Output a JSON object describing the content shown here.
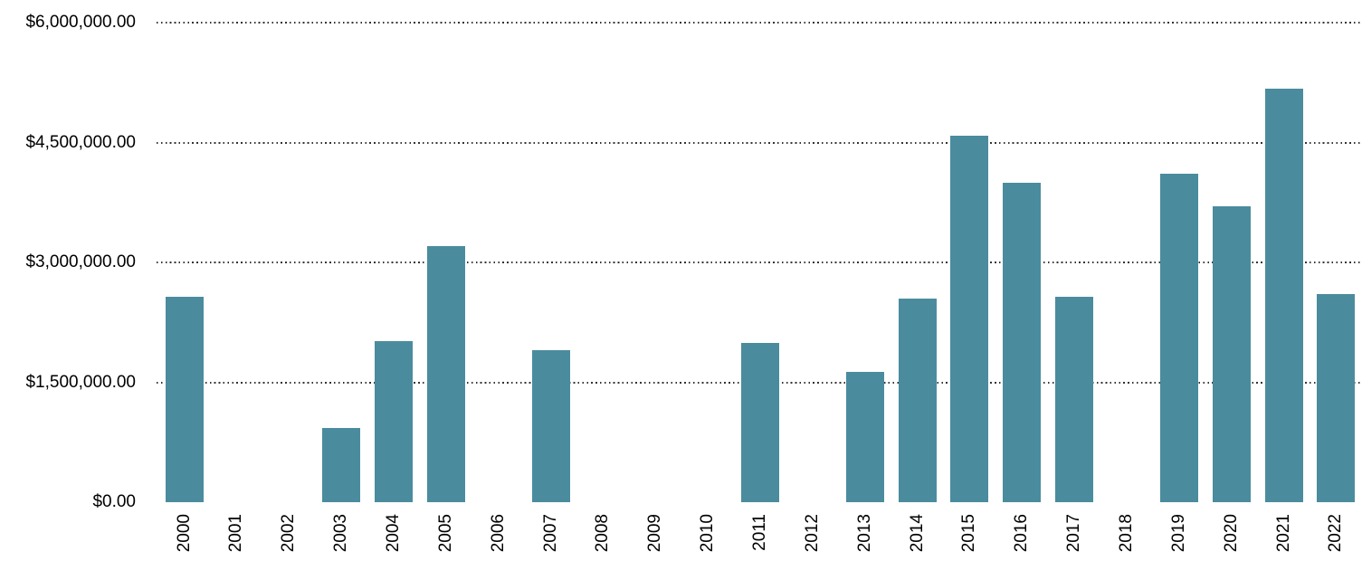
{
  "chart_data": {
    "type": "bar",
    "title": "",
    "xlabel": "",
    "ylabel": "",
    "legend": "none",
    "grid": "horizontal-dotted",
    "background_color": "#ffffff",
    "bar_color": "#4a8c9e",
    "text_color": "#000000",
    "x_tick_rotation": -90,
    "ylim": [
      0,
      6000000
    ],
    "y_ticks": [
      {
        "value": 0,
        "label": "$0.00"
      },
      {
        "value": 1500000,
        "label": "$1,500,000.00"
      },
      {
        "value": 3000000,
        "label": "$3,000,000.00"
      },
      {
        "value": 4500000,
        "label": "$4,500,000.00"
      },
      {
        "value": 6000000,
        "label": "$6,000,000.00"
      }
    ],
    "categories": [
      "2000",
      "2001",
      "2002",
      "2003",
      "2004",
      "2005",
      "2006",
      "2007",
      "2008",
      "2009",
      "2010",
      "2011",
      "2012",
      "2013",
      "2014",
      "2015",
      "2016",
      "2017",
      "2018",
      "2019",
      "2020",
      "2021",
      "2022"
    ],
    "values": [
      2570000,
      0,
      0,
      930000,
      2015000,
      3205000,
      0,
      1900000,
      0,
      0,
      0,
      1990000,
      0,
      1630000,
      2550000,
      4590000,
      4000000,
      2570000,
      0,
      4110000,
      3700000,
      5175000,
      2605000
    ]
  }
}
